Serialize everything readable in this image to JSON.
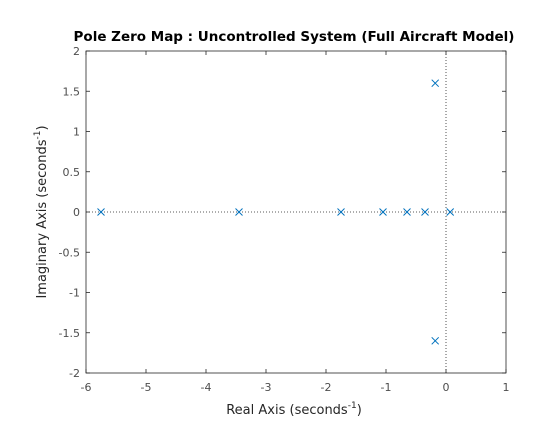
{
  "chart_data": {
    "type": "scatter",
    "title": "Pole Zero Map : Uncontrolled System (Full Aircraft Model)",
    "xlabel": {
      "text": "Real Axis (seconds",
      "superscript": "-1",
      "close": ")"
    },
    "ylabel": {
      "text": "Imaginary Axis (seconds",
      "superscript": "-1",
      "close": ")"
    },
    "xlim": [
      -6,
      1
    ],
    "ylim": [
      -2,
      2
    ],
    "xticks": [
      -6,
      -5,
      -4,
      -3,
      -2,
      -1,
      0,
      1
    ],
    "yticks": [
      -2,
      -1.5,
      -1,
      -0.5,
      0,
      0.5,
      1,
      1.5,
      2
    ],
    "xtick_labels": [
      "-6",
      "-5",
      "-4",
      "-3",
      "-2",
      "-1",
      "0",
      "1"
    ],
    "ytick_labels": [
      "-2",
      "-1.5",
      "-1",
      "-0.5",
      "0",
      "0.5",
      "1",
      "1.5",
      "2"
    ],
    "grid": false,
    "reference_lines": [
      "x=0",
      "y=0"
    ],
    "marker": "x",
    "series": [
      {
        "points": [
          {
            "x": -5.75,
            "y": 0
          },
          {
            "x": -3.45,
            "y": 0
          },
          {
            "x": -1.75,
            "y": 0
          },
          {
            "x": -1.05,
            "y": 0
          },
          {
            "x": -0.65,
            "y": 0
          },
          {
            "x": -0.35,
            "y": 0
          },
          {
            "x": 0.07,
            "y": 0
          },
          {
            "x": -0.18,
            "y": 1.6
          },
          {
            "x": -0.18,
            "y": -1.6
          }
        ]
      }
    ],
    "colors": {
      "marker": "#0072bd",
      "axes": "#262626",
      "reference": "#262626"
    }
  }
}
